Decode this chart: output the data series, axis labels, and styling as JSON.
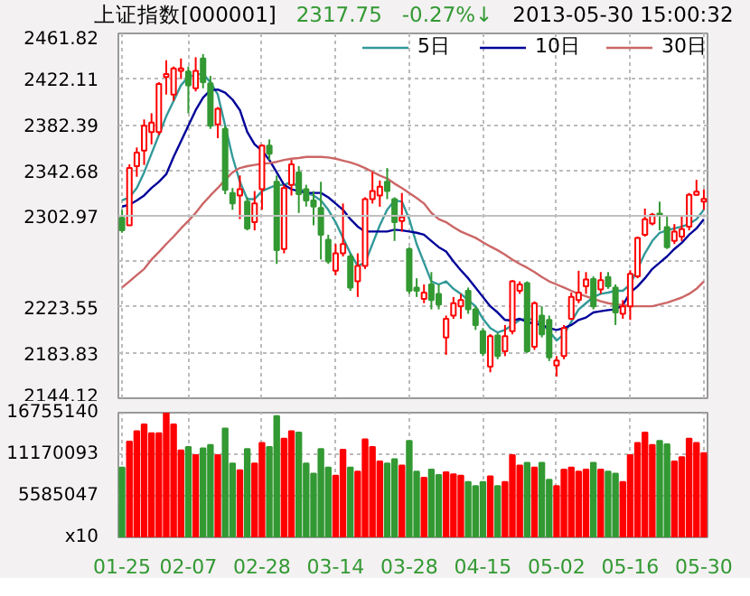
{
  "chart_data": [
    {
      "type": "candlestick",
      "title": "上证指数[000001]",
      "annotations": [
        "2317.75",
        "-0.27%↓",
        "2013-05-30 15:00:32"
      ],
      "categories": [
        null,
        null,
        null,
        null,
        null,
        null,
        null,
        null,
        null,
        null,
        null,
        null,
        null,
        null,
        null,
        null,
        null,
        null,
        null,
        null,
        null,
        null,
        null,
        null,
        null,
        null,
        null,
        null,
        null,
        null,
        null,
        null,
        null,
        null,
        null,
        null,
        null,
        null,
        null,
        null,
        null,
        null,
        null,
        null,
        null,
        null,
        null,
        null,
        null,
        null,
        null,
        null,
        null,
        null,
        null,
        null,
        null,
        null,
        null,
        null,
        null,
        null,
        null,
        null,
        null,
        null,
        null,
        null,
        null,
        null,
        null,
        null,
        null,
        null,
        null,
        null,
        null,
        null,
        null,
        null
      ],
      "ohlc": [
        [
          2301.2,
          2308.2,
          2288.2,
          2290.3
        ],
        [
          2294.7,
          2347.8,
          2294.7,
          2344.6
        ],
        [
          2346.2,
          2362.5,
          2337.0,
          2358.1
        ],
        [
          2359.8,
          2386.9,
          2347.3,
          2381.5
        ],
        [
          2376.0,
          2392.3,
          2365.2,
          2384.2
        ],
        [
          2376.0,
          2419.4,
          2373.3,
          2417.8
        ],
        [
          2423.8,
          2438.4,
          2408.6,
          2426.5
        ],
        [
          2408.6,
          2433.0,
          2403.1,
          2431.3
        ],
        [
          2429.2,
          2440.0,
          2422.1,
          2431.3
        ],
        [
          2428.6,
          2433.0,
          2392.3,
          2416.7
        ],
        [
          2414.0,
          2441.1,
          2411.3,
          2429.2
        ],
        [
          2440.0,
          2443.8,
          2414.0,
          2419.4
        ],
        [
          2418.3,
          2424.8,
          2378.7,
          2381.5
        ],
        [
          2382.5,
          2397.7,
          2370.6,
          2396.1
        ],
        [
          2378.7,
          2381.5,
          2321.8,
          2325.6
        ],
        [
          2322.9,
          2327.2,
          2308.2,
          2313.7
        ],
        [
          2320.7,
          2338.1,
          2300.1,
          2326.2
        ],
        [
          2315.3,
          2319.1,
          2290.3,
          2292.0
        ],
        [
          2297.4,
          2324.5,
          2290.3,
          2313.7
        ],
        [
          2326.1,
          2365.2,
          2308.2,
          2364.1
        ],
        [
          2364.1,
          2369.5,
          2351.6,
          2357.1
        ],
        [
          2332.6,
          2338.1,
          2261.1,
          2273.0
        ],
        [
          2274.1,
          2330.0,
          2270.3,
          2327.2
        ],
        [
          2330.0,
          2351.6,
          2320.7,
          2347.8
        ],
        [
          2340.8,
          2346.2,
          2305.5,
          2321.8
        ],
        [
          2326.1,
          2330.0,
          2311.0,
          2316.4
        ],
        [
          2316.4,
          2324.5,
          2294.7,
          2311.0
        ],
        [
          2309.9,
          2332.6,
          2264.9,
          2286.5
        ],
        [
          2282.2,
          2286.5,
          2261.1,
          2263.2
        ],
        [
          2255.1,
          2278.4,
          2251.3,
          2270.3
        ],
        [
          2270.3,
          2313.7,
          2267.6,
          2278.4
        ],
        [
          2267.6,
          2270.3,
          2237.7,
          2240.5
        ],
        [
          2245.9,
          2270.3,
          2232.3,
          2259.4
        ],
        [
          2259.4,
          2319.1,
          2256.7,
          2317.5
        ],
        [
          2317.5,
          2340.8,
          2313.7,
          2324.5
        ],
        [
          2320.7,
          2333.7,
          2310.9,
          2328.3
        ],
        [
          2332.6,
          2344.6,
          2317.5,
          2324.5
        ],
        [
          2317.5,
          2319.1,
          2281.1,
          2297.4
        ],
        [
          2298.5,
          2322.9,
          2289.3,
          2301.7
        ],
        [
          2274.1,
          2275.7,
          2235.0,
          2237.7
        ],
        [
          2240.5,
          2248.6,
          2232.3,
          2237.7
        ],
        [
          2230.7,
          2243.2,
          2226.9,
          2236.1
        ],
        [
          2243.2,
          2254.0,
          2221.5,
          2229.6
        ],
        [
          2235.0,
          2243.2,
          2221.5,
          2225.8
        ],
        [
          2197.1,
          2216.1,
          2181.9,
          2213.3
        ],
        [
          2216.1,
          2232.3,
          2213.3,
          2226.9
        ],
        [
          2224.2,
          2235.0,
          2213.3,
          2229.6
        ],
        [
          2237.7,
          2240.5,
          2217.7,
          2221.5
        ],
        [
          2221.5,
          2224.2,
          2203.6,
          2207.9
        ],
        [
          2202.5,
          2205.2,
          2180.8,
          2183.5
        ],
        [
          2171.6,
          2200.0,
          2166.7,
          2198.2
        ],
        [
          2198.7,
          2200.9,
          2178.1,
          2180.8
        ],
        [
          2185.1,
          2207.9,
          2180.8,
          2198.2
        ],
        [
          2202.5,
          2247.0,
          2199.8,
          2245.9
        ],
        [
          2237.7,
          2245.9,
          2235.0,
          2243.2
        ],
        [
          2244.3,
          2245.9,
          2183.5,
          2185.1
        ],
        [
          2189.0,
          2228.5,
          2186.2,
          2226.9
        ],
        [
          2216.1,
          2224.2,
          2197.1,
          2199.8
        ],
        [
          2212.3,
          2216.1,
          2176.5,
          2179.7
        ],
        [
          2172.7,
          2180.8,
          2163.0,
          2176.9
        ],
        [
          2180.8,
          2207.9,
          2178.1,
          2205.2
        ],
        [
          2213.3,
          2236.1,
          2212.3,
          2232.3
        ],
        [
          2229.6,
          2255.1,
          2226.9,
          2236.1
        ],
        [
          2241.6,
          2254.0,
          2235.0,
          2247.5
        ],
        [
          2248.0,
          2250.2,
          2221.5,
          2224.2
        ],
        [
          2238.8,
          2254.0,
          2235.0,
          2247.0
        ],
        [
          2249.7,
          2254.0,
          2239.4,
          2241.6
        ],
        [
          2240.5,
          2243.2,
          2207.9,
          2218.8
        ],
        [
          2217.7,
          2229.6,
          2213.3,
          2224.2
        ],
        [
          2224.2,
          2255.6,
          2212.3,
          2252.4
        ],
        [
          2250.2,
          2284.9,
          2248.6,
          2283.8
        ],
        [
          2286.5,
          2309.3,
          2284.9,
          2300.1
        ],
        [
          2296.3,
          2305.5,
          2294.7,
          2303.9
        ],
        [
          2305.0,
          2315.3,
          2290.3,
          2303.9
        ],
        [
          2293.1,
          2302.8,
          2274.1,
          2275.7
        ],
        [
          2281.1,
          2295.8,
          2278.4,
          2289.3
        ],
        [
          2284.9,
          2302.8,
          2281.1,
          2291.4
        ],
        [
          2293.6,
          2322.9,
          2290.3,
          2321.3
        ],
        [
          2321.3,
          2334.3,
          2320.7,
          2324.0
        ],
        [
          2315.3,
          2326.1,
          2308.2,
          2317.7
        ]
      ],
      "series": [
        {
          "name": "5日",
          "type": "line",
          "color": "#339999",
          "values": [
            2316.4,
            2319.1,
            2327.2,
            2340.8,
            2357.1,
            2373.3,
            2389.6,
            2403.1,
            2416.7,
            2423.8,
            2425.9,
            2426.5,
            2419.4,
            2408.6,
            2381.5,
            2354.3,
            2332.6,
            2317.5,
            2317.5,
            2324.5,
            2327.2,
            2329.9,
            2329.9,
            2332.6,
            2327.2,
            2322.9,
            2320.7,
            2316.4,
            2308.2,
            2297.4,
            2283.8,
            2270.3,
            2259.4,
            2262.2,
            2278.4,
            2294.7,
            2308.2,
            2316.4,
            2315.3,
            2300.1,
            2278.4,
            2262.2,
            2245.9,
            2243.2,
            2245.9,
            2239.4,
            2235.0,
            2229.6,
            2224.2,
            2213.3,
            2205.2,
            2201.4,
            2203.6,
            2207.9,
            2212.3,
            2213.3,
            2212.3,
            2209.0,
            2202.5,
            2194.4,
            2199.8,
            2210.6,
            2221.5,
            2226.9,
            2232.3,
            2235.0,
            2236.1,
            2237.7,
            2237.7,
            2243.2,
            2256.7,
            2270.3,
            2281.1,
            2288.2,
            2290.3,
            2292.0,
            2293.6,
            2295.8,
            2300.1,
            2308.2
          ]
        },
        {
          "name": "10日",
          "type": "line",
          "color": "#000099",
          "values": [
            2311.0,
            2312.6,
            2316.4,
            2320.7,
            2327.2,
            2332.6,
            2339.2,
            2354.3,
            2367.9,
            2381.5,
            2395.0,
            2405.9,
            2412.4,
            2412.9,
            2410.2,
            2404.2,
            2395.0,
            2376.0,
            2365.2,
            2359.8,
            2351.6,
            2340.8,
            2329.9,
            2326.1,
            2324.5,
            2322.9,
            2322.9,
            2322.9,
            2319.1,
            2313.7,
            2308.2,
            2300.1,
            2293.6,
            2289.3,
            2289.3,
            2289.3,
            2289.3,
            2290.9,
            2290.3,
            2289.3,
            2288.2,
            2286.5,
            2281.1,
            2275.7,
            2271.9,
            2263.2,
            2255.6,
            2248.6,
            2240.5,
            2232.3,
            2224.2,
            2218.8,
            2212.3,
            2211.7,
            2213.3,
            2210.6,
            2209.0,
            2207.9,
            2205.2,
            2203.6,
            2205.2,
            2207.9,
            2212.3,
            2214.4,
            2218.8,
            2219.9,
            2220.9,
            2221.5,
            2225.3,
            2236.1,
            2241.5,
            2248.6,
            2256.7,
            2262.2,
            2267.6,
            2274.1,
            2279.5,
            2286.5,
            2292.0,
            2300.1
          ]
        },
        {
          "name": "30日",
          "type": "line",
          "color": "#cc6666",
          "values": [
            2240.5,
            2245.9,
            2251.3,
            2256.7,
            2264.9,
            2271.4,
            2278.4,
            2284.9,
            2292.0,
            2298.5,
            2305.5,
            2313.7,
            2320.7,
            2327.2,
            2334.3,
            2340.8,
            2344.6,
            2346.2,
            2347.3,
            2348.4,
            2348.9,
            2350.0,
            2351.6,
            2352.7,
            2353.3,
            2354.3,
            2354.3,
            2354.3,
            2353.8,
            2352.7,
            2351.1,
            2349.5,
            2347.3,
            2344.6,
            2341.3,
            2338.1,
            2335.4,
            2331.0,
            2327.2,
            2322.9,
            2318.5,
            2313.7,
            2305.5,
            2300.1,
            2297.4,
            2293.1,
            2289.3,
            2286.5,
            2283.8,
            2280.0,
            2276.3,
            2273.0,
            2269.2,
            2264.9,
            2261.1,
            2257.8,
            2254.0,
            2249.7,
            2245.9,
            2243.2,
            2240.5,
            2237.7,
            2235.0,
            2232.9,
            2230.7,
            2228.5,
            2226.9,
            2225.8,
            2225.3,
            2224.2,
            2224.2,
            2224.2,
            2224.2,
            2225.8,
            2227.4,
            2229.6,
            2231.8,
            2235.0,
            2239.4,
            2245.9
          ]
        }
      ],
      "ylim": [
        2144.12,
        2461.82
      ],
      "yticks": [
        2144.12,
        2183.83,
        2223.55,
        {
          "value": 2263.26,
          "label": null
        },
        2302.97,
        2342.68,
        2382.39,
        2422.11,
        2461.82
      ],
      "ref_lines": [
        {
          "axis": "y",
          "value": 2302.97,
          "color": "#c0c0c0",
          "line_style": "solid"
        }
      ],
      "grid": true,
      "legend": "top right",
      "tick_labels": "y"
    },
    {
      "type": "bar",
      "categories": [
        "01-25",
        null,
        null,
        null,
        null,
        null,
        null,
        null,
        null,
        "02-07",
        null,
        null,
        null,
        null,
        null,
        null,
        null,
        null,
        null,
        "02-28",
        null,
        null,
        null,
        null,
        null,
        null,
        null,
        null,
        null,
        "03-14",
        null,
        null,
        null,
        null,
        null,
        null,
        null,
        null,
        null,
        "03-28",
        null,
        null,
        null,
        null,
        null,
        null,
        null,
        null,
        null,
        "04-15",
        null,
        null,
        null,
        null,
        null,
        null,
        null,
        null,
        null,
        "05-02",
        null,
        null,
        null,
        null,
        null,
        null,
        null,
        null,
        null,
        "05-16",
        null,
        null,
        null,
        null,
        null,
        null,
        null,
        null,
        null,
        "05-30"
      ],
      "values": [
        9390000,
        12880000,
        14260000,
        15180000,
        13990000,
        13990000,
        16750000,
        15180000,
        11690000,
        12150000,
        11040000,
        11960000,
        12420000,
        11040000,
        14630000,
        9940000,
        9020000,
        11870000,
        9940000,
        12700000,
        12150000,
        16290000,
        13250000,
        14260000,
        14080000,
        9940000,
        8560000,
        11870000,
        9390000,
        8280000,
        11780000,
        9390000,
        8830000,
        13160000,
        12150000,
        10210000,
        9940000,
        10490000,
        9660000,
        12970000,
        8830000,
        8000000,
        9110000,
        8370000,
        8740000,
        8460000,
        8280000,
        7450000,
        6900000,
        7450000,
        8190000,
        6900000,
        7450000,
        11040000,
        9660000,
        10030000,
        9390000,
        10030000,
        7730000,
        6900000,
        9110000,
        9390000,
        8830000,
        9110000,
        10030000,
        9110000,
        8830000,
        8560000,
        7450000,
        11040000,
        12700000,
        14080000,
        12420000,
        12970000,
        12510000,
        10210000,
        10770000,
        13250000,
        12700000,
        11320000
      ],
      "colors": [
        "#339933",
        "#ff0000",
        "#ff0000",
        "#ff0000",
        "#ff0000",
        "#ff0000",
        "#ff0000",
        "#ff0000",
        "#ff0000",
        "#339933",
        "#ff0000",
        "#339933",
        "#339933",
        "#ff0000",
        "#339933",
        "#339933",
        "#ff0000",
        "#339933",
        "#ff0000",
        "#ff0000",
        "#339933",
        "#339933",
        "#ff0000",
        "#ff0000",
        "#339933",
        "#339933",
        "#339933",
        "#339933",
        "#339933",
        "#ff0000",
        "#ff0000",
        "#339933",
        "#ff0000",
        "#ff0000",
        "#ff0000",
        "#ff0000",
        "#339933",
        "#339933",
        "#ff0000",
        "#339933",
        "#339933",
        "#ff0000",
        "#339933",
        "#339933",
        "#ff0000",
        "#ff0000",
        "#ff0000",
        "#339933",
        "#339933",
        "#339933",
        "#ff0000",
        "#339933",
        "#ff0000",
        "#ff0000",
        "#ff0000",
        "#339933",
        "#ff0000",
        "#339933",
        "#339933",
        "#ff0000",
        "#ff0000",
        "#ff0000",
        "#ff0000",
        "#ff0000",
        "#339933",
        "#ff0000",
        "#339933",
        "#339933",
        "#ff0000",
        "#ff0000",
        "#ff0000",
        "#ff0000",
        "#ff0000",
        "#339933",
        "#339933",
        "#ff0000",
        "#ff0000",
        "#ff0000",
        "#ff0000",
        "#ff0000"
      ],
      "ylim": [
        0,
        16755140
      ],
      "yticks": [
        {
          "value": 0,
          "label": "x10"
        },
        5585047,
        11170093,
        16755140
      ],
      "grid": true
    }
  ]
}
